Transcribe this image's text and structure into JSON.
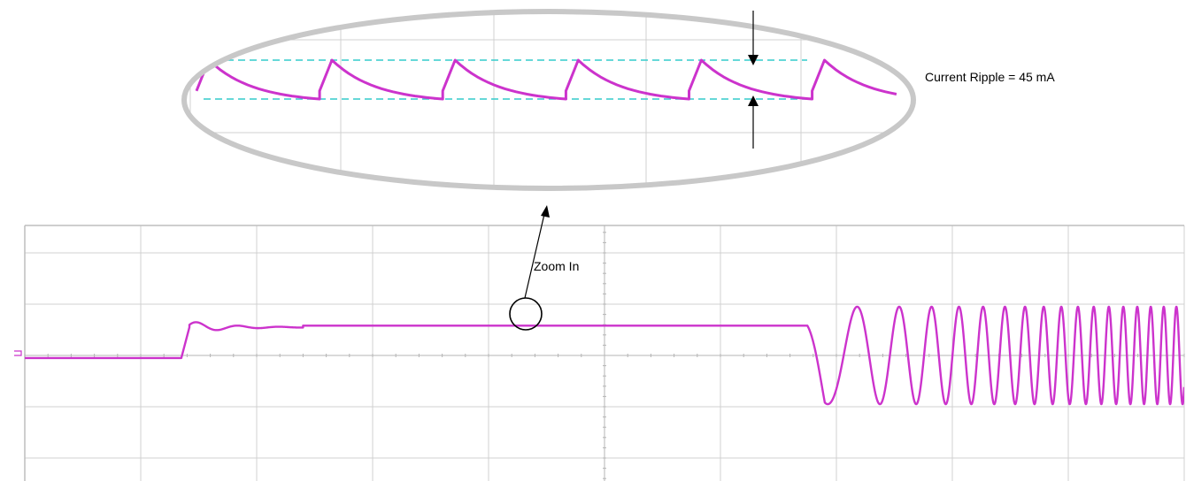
{
  "chart_data": [
    {
      "type": "line",
      "view": "main",
      "title": "",
      "xlabel": "",
      "ylabel": "",
      "grid": true,
      "divisions": {
        "x": 10,
        "y": 6
      },
      "xlim": [
        0,
        10
      ],
      "ylim": [
        -3,
        3
      ],
      "series": [
        {
          "segments": [
            {
              "kind": "step",
              "x": [
                0.0,
                1.35
              ],
              "y": [
                -0.05,
                -0.05
              ]
            },
            {
              "kind": "step",
              "x": [
                1.35,
                1.42
              ],
              "y": [
                -0.05,
                0.55
              ]
            },
            {
              "kind": "ringing",
              "x": [
                1.42,
                2.4
              ],
              "y_base": 0.55,
              "amplitude": 0.12,
              "decay": 3.2
            },
            {
              "kind": "flat",
              "x": [
                2.4,
                6.75
              ],
              "y": 0.58
            },
            {
              "kind": "chirp",
              "x": [
                6.75,
                10.0
              ],
              "y_base": 0.0,
              "amplitude": 0.95,
              "f_start": 1.2,
              "f_end": 9.5
            }
          ]
        }
      ],
      "color": "#cc33cc"
    },
    {
      "type": "line",
      "view": "zoom",
      "grid": true,
      "ripple_period": 1.0,
      "ripple_cycles": 6,
      "ripple_high": 0.36,
      "ripple_low": -0.36,
      "color": "#cc33cc",
      "reference_line_color": "#33cccc"
    }
  ],
  "annotations": {
    "ripple_text": "Current Ripple = 45 mA",
    "zoom_text": "Zoom In"
  },
  "colors": {
    "trace": "#cc33cc",
    "grid": "#d0d0d0",
    "lens_ring": "#c8c8c8",
    "reference": "#33cccc"
  }
}
